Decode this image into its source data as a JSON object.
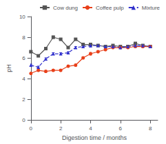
{
  "chart_data": {
    "type": "line",
    "xlabel": "Digestion time / months",
    "ylabel": "pH",
    "xlim": [
      0,
      8.5
    ],
    "ylim": [
      0,
      10
    ],
    "xticks": [
      0,
      2,
      4,
      6,
      8
    ],
    "yticks": [
      0,
      2,
      4,
      6,
      8,
      10
    ],
    "grid": false,
    "legend": "upper right",
    "x": [
      0,
      0.5,
      1.0,
      1.5,
      2.0,
      2.5,
      3.0,
      3.5,
      4.0,
      4.5,
      5.0,
      5.5,
      6.0,
      6.5,
      7.0,
      7.5,
      8.0
    ],
    "series": [
      {
        "name": "Cow dung",
        "color": "#555555",
        "marker": "square",
        "line_style": "solid",
        "values": [
          6.6,
          6.2,
          6.9,
          8.0,
          7.8,
          7.0,
          7.8,
          7.3,
          7.3,
          7.2,
          7.1,
          7.2,
          7.1,
          7.1,
          7.4,
          7.2,
          7.1
        ],
        "yerr": [
          0.1,
          0.08,
          0.1,
          0.12,
          0.1,
          0.1,
          0.1,
          0.1,
          0.12,
          0.1,
          0.1,
          0.1,
          0.1,
          0.1,
          0.1,
          0.1,
          0.1
        ]
      },
      {
        "name": "Coffee pulp",
        "color": "#e8401a",
        "marker": "circle",
        "line_style": "solid",
        "values": [
          4.5,
          4.8,
          4.7,
          4.8,
          4.8,
          5.2,
          5.3,
          6.0,
          6.4,
          6.6,
          6.8,
          7.0,
          7.0,
          7.0,
          7.1,
          7.1,
          7.1
        ],
        "yerr": [
          0.1,
          0.1,
          0.1,
          0.1,
          0.1,
          0.1,
          0.1,
          0.1,
          0.12,
          0.1,
          0.1,
          0.1,
          0.1,
          0.1,
          0.1,
          0.1,
          0.1
        ]
      },
      {
        "name": "Mixture",
        "color": "#3030cc",
        "marker": "triangle",
        "line_style": "dashed",
        "values": [
          5.3,
          5.1,
          5.9,
          6.4,
          6.4,
          6.5,
          7.0,
          7.1,
          7.2,
          7.2,
          7.1,
          7.1,
          7.0,
          7.1,
          7.2,
          7.2,
          7.1
        ],
        "yerr": [
          0.1,
          0.1,
          0.1,
          0.1,
          0.1,
          0.1,
          0.1,
          0.1,
          0.15,
          0.1,
          0.1,
          0.1,
          0.1,
          0.1,
          0.1,
          0.1,
          0.1
        ]
      }
    ]
  }
}
